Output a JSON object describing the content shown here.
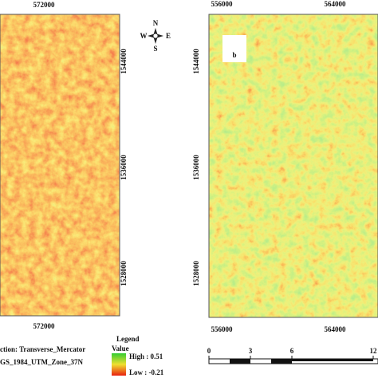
{
  "left_panel": {
    "top_ticks": [
      "572000"
    ],
    "right_ticks": [
      "1544000",
      "1536000",
      "1528000"
    ],
    "bottom_ticks": [
      "572000"
    ]
  },
  "compass": {
    "west": "W",
    "east": "E",
    "north": "N",
    "south": "S"
  },
  "right_panel": {
    "label": "b",
    "top_ticks": [
      "556000",
      "564000"
    ],
    "left_ticks": [
      "1544000",
      "1536000",
      "1528000"
    ],
    "bottom_ticks": [
      "556000",
      "564000"
    ]
  },
  "projection": {
    "line1": "ction: Transverse_Mercator",
    "line2": "GS_1984_UTM_Zone_37N"
  },
  "legend": {
    "title": "Legend",
    "subtitle": "Value",
    "high": "High : 0.51",
    "low": "Low : -0.21"
  },
  "scale_bar": {
    "labels": [
      "0",
      "3",
      "6",
      "12"
    ]
  }
}
